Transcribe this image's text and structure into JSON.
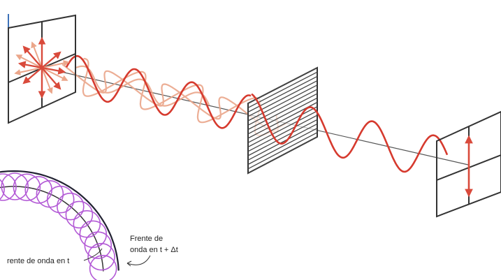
{
  "labels": {
    "front_t": "rente de onda en t",
    "front_dt_line1": "Frente de",
    "front_dt_line2": "onda en t + Δt"
  },
  "colors": {
    "wave": "#d63a2e",
    "wave_faded": "#eba68a",
    "wavelet": "#b35ad6",
    "frame": "#333333",
    "axis": "#555555",
    "arrow": "#d94a3b",
    "left_edge": "#3d72b8"
  }
}
